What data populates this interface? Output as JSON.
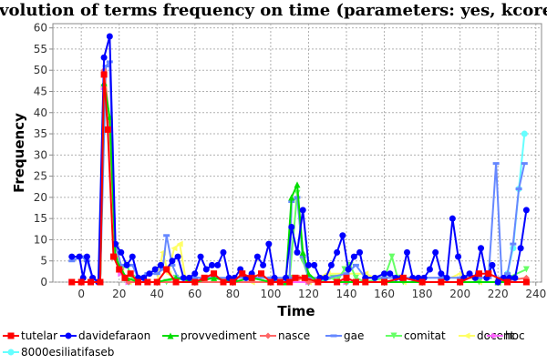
{
  "chart_data": {
    "type": "line",
    "title": "Evolution of terms frequency on time (parameters: yes, kcore)",
    "xlabel": "Time",
    "ylabel": "Frequency",
    "xlim": [
      -15,
      243
    ],
    "ylim": [
      0,
      61
    ],
    "xticks": [
      0,
      20,
      40,
      60,
      80,
      100,
      120,
      140,
      160,
      180,
      200,
      220,
      240
    ],
    "yticks": [
      0,
      5,
      10,
      15,
      20,
      25,
      30,
      35,
      40,
      45,
      50,
      55,
      60
    ],
    "grid": true,
    "legend_position": "bottom",
    "series": [
      {
        "name": "tutelar",
        "color": "#ff0000",
        "marker": "square",
        "points": [
          [
            -5,
            0
          ],
          [
            0,
            0
          ],
          [
            5,
            0
          ],
          [
            10,
            0
          ],
          [
            12,
            49
          ],
          [
            14,
            36
          ],
          [
            17,
            6
          ],
          [
            20,
            3
          ],
          [
            23,
            1
          ],
          [
            26,
            2
          ],
          [
            30,
            0
          ],
          [
            35,
            0
          ],
          [
            40,
            0
          ],
          [
            45,
            3
          ],
          [
            50,
            0
          ],
          [
            60,
            0
          ],
          [
            65,
            1
          ],
          [
            70,
            2
          ],
          [
            75,
            0
          ],
          [
            80,
            0
          ],
          [
            85,
            2
          ],
          [
            90,
            1
          ],
          [
            95,
            2
          ],
          [
            100,
            0
          ],
          [
            105,
            0
          ],
          [
            110,
            0
          ],
          [
            113,
            1
          ],
          [
            118,
            1
          ],
          [
            125,
            0
          ],
          [
            135,
            0
          ],
          [
            140,
            1
          ],
          [
            145,
            0
          ],
          [
            150,
            0
          ],
          [
            160,
            0
          ],
          [
            170,
            1
          ],
          [
            180,
            0
          ],
          [
            190,
            0
          ],
          [
            200,
            0
          ],
          [
            210,
            2
          ],
          [
            215,
            2
          ],
          [
            225,
            0
          ],
          [
            235,
            0
          ]
        ]
      },
      {
        "name": "davidefaraon",
        "color": "#0000ff",
        "marker": "circle",
        "points": [
          [
            -5,
            6
          ],
          [
            -1,
            6
          ],
          [
            1,
            1
          ],
          [
            3,
            6
          ],
          [
            6,
            1
          ],
          [
            9,
            0
          ],
          [
            12,
            53
          ],
          [
            15,
            58
          ],
          [
            18,
            9
          ],
          [
            21,
            7
          ],
          [
            24,
            4
          ],
          [
            27,
            6
          ],
          [
            30,
            1
          ],
          [
            33,
            1
          ],
          [
            36,
            2
          ],
          [
            39,
            3
          ],
          [
            42,
            4
          ],
          [
            45,
            3
          ],
          [
            48,
            5
          ],
          [
            51,
            6
          ],
          [
            54,
            1
          ],
          [
            57,
            1
          ],
          [
            60,
            2
          ],
          [
            63,
            6
          ],
          [
            66,
            3
          ],
          [
            69,
            4
          ],
          [
            72,
            4
          ],
          [
            75,
            7
          ],
          [
            78,
            1
          ],
          [
            81,
            1
          ],
          [
            84,
            3
          ],
          [
            87,
            1
          ],
          [
            90,
            2
          ],
          [
            93,
            6
          ],
          [
            96,
            4
          ],
          [
            99,
            9
          ],
          [
            102,
            1
          ],
          [
            105,
            0
          ],
          [
            108,
            1
          ],
          [
            111,
            13
          ],
          [
            114,
            7
          ],
          [
            117,
            17
          ],
          [
            120,
            4
          ],
          [
            123,
            4
          ],
          [
            126,
            1
          ],
          [
            129,
            1
          ],
          [
            132,
            4
          ],
          [
            135,
            7
          ],
          [
            138,
            11
          ],
          [
            141,
            3
          ],
          [
            144,
            6
          ],
          [
            147,
            7
          ],
          [
            150,
            1
          ],
          [
            155,
            1
          ],
          [
            160,
            2
          ],
          [
            163,
            2
          ],
          [
            166,
            1
          ],
          [
            169,
            1
          ],
          [
            172,
            7
          ],
          [
            175,
            1
          ],
          [
            178,
            1
          ],
          [
            181,
            1
          ],
          [
            184,
            3
          ],
          [
            187,
            7
          ],
          [
            190,
            2
          ],
          [
            193,
            1
          ],
          [
            196,
            15
          ],
          [
            199,
            6
          ],
          [
            202,
            1
          ],
          [
            205,
            2
          ],
          [
            208,
            1
          ],
          [
            211,
            8
          ],
          [
            214,
            1
          ],
          [
            217,
            4
          ],
          [
            220,
            0
          ],
          [
            223,
            1
          ],
          [
            226,
            1
          ],
          [
            229,
            1
          ],
          [
            232,
            8
          ],
          [
            235,
            17
          ]
        ]
      },
      {
        "name": "provvediment",
        "color": "#00dd00",
        "marker": "triangle",
        "points": [
          [
            -5,
            0
          ],
          [
            10,
            0
          ],
          [
            12,
            47
          ],
          [
            15,
            39
          ],
          [
            18,
            6
          ],
          [
            21,
            3
          ],
          [
            24,
            1
          ],
          [
            30,
            0
          ],
          [
            40,
            0
          ],
          [
            50,
            1
          ],
          [
            60,
            0
          ],
          [
            70,
            1
          ],
          [
            80,
            0
          ],
          [
            90,
            1
          ],
          [
            100,
            0
          ],
          [
            108,
            0
          ],
          [
            111,
            20
          ],
          [
            114,
            23
          ],
          [
            117,
            7
          ],
          [
            120,
            2
          ],
          [
            125,
            0
          ],
          [
            135,
            0
          ],
          [
            145,
            0
          ],
          [
            160,
            0
          ],
          [
            180,
            0
          ],
          [
            200,
            0
          ],
          [
            220,
            0
          ],
          [
            235,
            0
          ]
        ]
      },
      {
        "name": "nasce",
        "color": "#ff6666",
        "marker": "diamond",
        "points": [
          [
            -5,
            0
          ],
          [
            10,
            0
          ],
          [
            12,
            50
          ],
          [
            15,
            38
          ],
          [
            18,
            6
          ],
          [
            21,
            3
          ],
          [
            25,
            0
          ],
          [
            40,
            0
          ],
          [
            60,
            0
          ],
          [
            80,
            0
          ],
          [
            100,
            0
          ],
          [
            110,
            0
          ],
          [
            115,
            1
          ],
          [
            120,
            0
          ],
          [
            140,
            0
          ],
          [
            160,
            0
          ],
          [
            180,
            0
          ],
          [
            200,
            0
          ],
          [
            220,
            0
          ],
          [
            235,
            1
          ]
        ]
      },
      {
        "name": "gae",
        "color": "#6688ff",
        "marker": "dash",
        "points": [
          [
            -5,
            5
          ],
          [
            0,
            6
          ],
          [
            3,
            5
          ],
          [
            6,
            1
          ],
          [
            10,
            0
          ],
          [
            13,
            51
          ],
          [
            15,
            52
          ],
          [
            18,
            9
          ],
          [
            21,
            4
          ],
          [
            24,
            4
          ],
          [
            27,
            4
          ],
          [
            30,
            1
          ],
          [
            35,
            2
          ],
          [
            40,
            2
          ],
          [
            43,
            3
          ],
          [
            45,
            11
          ],
          [
            48,
            4
          ],
          [
            51,
            1
          ],
          [
            60,
            1
          ],
          [
            70,
            1
          ],
          [
            80,
            1
          ],
          [
            90,
            1
          ],
          [
            100,
            1
          ],
          [
            110,
            1
          ],
          [
            111,
            19
          ],
          [
            114,
            20
          ],
          [
            117,
            6
          ],
          [
            120,
            1
          ],
          [
            130,
            1
          ],
          [
            140,
            2
          ],
          [
            145,
            4
          ],
          [
            150,
            1
          ],
          [
            160,
            1
          ],
          [
            170,
            1
          ],
          [
            180,
            1
          ],
          [
            190,
            1
          ],
          [
            200,
            1
          ],
          [
            210,
            1
          ],
          [
            215,
            1
          ],
          [
            219,
            28
          ],
          [
            222,
            1
          ],
          [
            225,
            2
          ],
          [
            228,
            9
          ],
          [
            231,
            22
          ],
          [
            234,
            28
          ]
        ]
      },
      {
        "name": "comitat",
        "color": "#66ff66",
        "marker": "triangle-down",
        "points": [
          [
            -5,
            0
          ],
          [
            10,
            0
          ],
          [
            12,
            46
          ],
          [
            15,
            38
          ],
          [
            18,
            6
          ],
          [
            21,
            3
          ],
          [
            24,
            4
          ],
          [
            27,
            1
          ],
          [
            30,
            0
          ],
          [
            40,
            0
          ],
          [
            45,
            0
          ],
          [
            50,
            1
          ],
          [
            60,
            0
          ],
          [
            70,
            1
          ],
          [
            80,
            0
          ],
          [
            90,
            1
          ],
          [
            100,
            0
          ],
          [
            110,
            1
          ],
          [
            114,
            21
          ],
          [
            117,
            5
          ],
          [
            120,
            1
          ],
          [
            125,
            0
          ],
          [
            133,
            1
          ],
          [
            136,
            1
          ],
          [
            139,
            3
          ],
          [
            142,
            4
          ],
          [
            145,
            1
          ],
          [
            150,
            0
          ],
          [
            160,
            1
          ],
          [
            164,
            6
          ],
          [
            167,
            1
          ],
          [
            170,
            0
          ],
          [
            180,
            0
          ],
          [
            190,
            0
          ],
          [
            200,
            0
          ],
          [
            210,
            0
          ],
          [
            220,
            0
          ],
          [
            235,
            3
          ]
        ]
      },
      {
        "name": "docent",
        "color": "#ffff66",
        "marker": "triangle-left",
        "points": [
          [
            -5,
            0
          ],
          [
            10,
            0
          ],
          [
            12,
            46
          ],
          [
            15,
            38
          ],
          [
            18,
            6
          ],
          [
            21,
            3
          ],
          [
            25,
            0
          ],
          [
            35,
            0
          ],
          [
            40,
            0
          ],
          [
            43,
            7
          ],
          [
            46,
            2
          ],
          [
            49,
            8
          ],
          [
            52,
            9
          ],
          [
            55,
            1
          ],
          [
            60,
            0
          ],
          [
            70,
            1
          ],
          [
            80,
            0
          ],
          [
            90,
            0
          ],
          [
            100,
            0
          ],
          [
            110,
            1
          ],
          [
            115,
            1
          ],
          [
            120,
            0
          ],
          [
            130,
            2
          ],
          [
            140,
            2
          ],
          [
            150,
            2
          ],
          [
            160,
            0
          ],
          [
            170,
            0
          ],
          [
            180,
            0
          ],
          [
            190,
            0
          ],
          [
            200,
            2
          ],
          [
            210,
            0
          ],
          [
            220,
            0
          ],
          [
            235,
            0
          ]
        ]
      },
      {
        "name": "hoc",
        "color": "#ff66ff",
        "marker": "triangle-right",
        "points": [
          [
            -5,
            0
          ],
          [
            10,
            0
          ],
          [
            12,
            46
          ],
          [
            15,
            37
          ],
          [
            18,
            6
          ],
          [
            21,
            2
          ],
          [
            25,
            0
          ],
          [
            40,
            0
          ],
          [
            60,
            0
          ],
          [
            80,
            0
          ],
          [
            100,
            0
          ],
          [
            120,
            0
          ],
          [
            140,
            0
          ],
          [
            160,
            0
          ],
          [
            180,
            0
          ],
          [
            200,
            0
          ],
          [
            220,
            0
          ],
          [
            235,
            0
          ]
        ]
      },
      {
        "name": "8000esiliatifaseb",
        "color": "#66ffff",
        "marker": "circle",
        "points": [
          [
            -5,
            0
          ],
          [
            10,
            0
          ],
          [
            12,
            46
          ],
          [
            15,
            38
          ],
          [
            18,
            6
          ],
          [
            21,
            3
          ],
          [
            25,
            0
          ],
          [
            40,
            0
          ],
          [
            60,
            0
          ],
          [
            80,
            0
          ],
          [
            100,
            0
          ],
          [
            120,
            0
          ],
          [
            140,
            0
          ],
          [
            160,
            0
          ],
          [
            180,
            0
          ],
          [
            200,
            0
          ],
          [
            220,
            0
          ],
          [
            225,
            2
          ],
          [
            228,
            8
          ],
          [
            231,
            22
          ],
          [
            234,
            35
          ]
        ]
      }
    ]
  }
}
